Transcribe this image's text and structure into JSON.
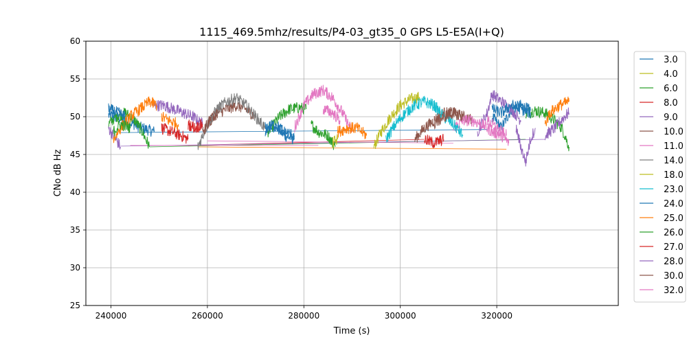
{
  "chart_data": {
    "type": "line",
    "title": "1115_469.5mhz/results/P4-03_gt35_0 GPS L5-E5A(I+Q)",
    "xlabel": "Time (s)",
    "ylabel": "CNo dB Hz",
    "xlim": [
      234800,
      345200
    ],
    "ylim": [
      25,
      60
    ],
    "x_ticks": [
      240000,
      260000,
      280000,
      300000,
      320000
    ],
    "x_tick_labels": [
      "240000",
      "260000",
      "280000",
      "300000",
      "320000"
    ],
    "y_ticks": [
      25,
      30,
      35,
      40,
      45,
      50,
      55,
      60
    ],
    "y_tick_labels": [
      "25",
      "30",
      "35",
      "40",
      "45",
      "50",
      "55",
      "60"
    ],
    "grid": true,
    "legend_position": "outside-right",
    "series": [
      {
        "name": "3.0",
        "color": "#1f77b4",
        "segments": [
          [
            [
              239500,
              50.2
            ],
            [
              243000,
              49.6
            ],
            [
              246000,
              48.6
            ],
            [
              249000,
              48.0
            ]
          ],
          [
            [
              272000,
              48.0
            ],
            [
              274000,
              48.8
            ],
            [
              276000,
              47.5
            ],
            [
              278000,
              47.0
            ]
          ],
          [
            [
              319000,
              50.0
            ],
            [
              321000,
              48.5
            ],
            [
              323000,
              51.0
            ],
            [
              325000,
              51.5
            ],
            [
              327000,
              50.8
            ]
          ]
        ]
      },
      {
        "name": "4.0",
        "color": "#bcbd22",
        "segments": [
          [
            [
              294500,
              46.0
            ],
            [
              296000,
              48.0
            ],
            [
              298000,
              50.0
            ],
            [
              300000,
              51.5
            ],
            [
              302000,
              52.3
            ],
            [
              304000,
              52.6
            ]
          ]
        ]
      },
      {
        "name": "6.0",
        "color": "#2ca02c",
        "segments": [
          [
            [
              239500,
              49.0
            ],
            [
              241000,
              50.0
            ],
            [
              243000,
              50.5
            ],
            [
              245000,
              49.5
            ],
            [
              246500,
              48.0
            ],
            [
              248000,
              46.0
            ]
          ],
          [
            [
              272500,
              48.0
            ],
            [
              275000,
              50.0
            ],
            [
              277000,
              51.0
            ],
            [
              279000,
              51.2
            ],
            [
              280500,
              51.0
            ]
          ],
          [
            [
              281500,
              49.0
            ],
            [
              283000,
              48.0
            ],
            [
              285000,
              47.5
            ],
            [
              286500,
              46.0
            ]
          ],
          [
            [
              326000,
              50.5
            ],
            [
              328000,
              50.8
            ],
            [
              330000,
              50.5
            ],
            [
              332000,
              49.5
            ],
            [
              333500,
              48.5
            ],
            [
              335000,
              46.0
            ]
          ]
        ]
      },
      {
        "name": "8.0",
        "color": "#d62728",
        "segments": [
          [
            [
              250500,
              48.5
            ],
            [
              252500,
              48.0
            ],
            [
              254500,
              47.5
            ],
            [
              256000,
              47.0
            ]
          ]
        ]
      },
      {
        "name": "9.0",
        "color": "#9467bd",
        "segments": [
          [
            [
              239500,
              48.5
            ],
            [
              241000,
              47.0
            ],
            [
              242000,
              46.0
            ]
          ],
          [
            [
              248500,
              51.5
            ],
            [
              251000,
              51.5
            ],
            [
              253000,
              51.0
            ],
            [
              255000,
              50.5
            ],
            [
              257000,
              50.0
            ],
            [
              259000,
              49.0
            ]
          ],
          [
            [
              316000,
              48.0
            ],
            [
              318000,
              50.5
            ],
            [
              319000,
              53.0
            ],
            [
              321000,
              52.0
            ],
            [
              323000,
              51.0
            ],
            [
              325000,
              49.5
            ]
          ],
          [
            [
              330000,
              47.5
            ],
            [
              332000,
              48.5
            ],
            [
              334000,
              50.0
            ],
            [
              335000,
              50.5
            ]
          ]
        ]
      },
      {
        "name": "10.0",
        "color": "#8c564b",
        "segments": [
          [
            [
              260000,
              49.0
            ],
            [
              262000,
              50.5
            ],
            [
              264000,
              51.0
            ],
            [
              266000,
              51.5
            ],
            [
              268000,
              51.0
            ],
            [
              270000,
              50.0
            ]
          ],
          [
            [
              303000,
              47.0
            ],
            [
              305000,
              48.5
            ],
            [
              307000,
              49.5
            ],
            [
              309000,
              50.5
            ],
            [
              311000,
              50.5
            ],
            [
              313000,
              50.0
            ],
            [
              315000,
              49.5
            ]
          ]
        ]
      },
      {
        "name": "11.0",
        "color": "#e377c2",
        "segments": [
          [
            [
              278000,
              48.5
            ],
            [
              280000,
              51.5
            ],
            [
              282000,
              53.0
            ],
            [
              284000,
              53.5
            ],
            [
              286000,
              52.5
            ],
            [
              288000,
              50.5
            ],
            [
              290000,
              48.0
            ]
          ],
          [
            [
              311000,
              48.5
            ],
            [
              313000,
              49.5
            ],
            [
              315000,
              49.5
            ],
            [
              317000,
              49.0
            ],
            [
              319000,
              48.0
            ],
            [
              321000,
              47.5
            ],
            [
              322500,
              46.5
            ]
          ]
        ]
      },
      {
        "name": "14.0",
        "color": "#7f7f7f",
        "segments": [
          [
            [
              258000,
              46.0
            ],
            [
              260000,
              49.0
            ],
            [
              262000,
              51.0
            ],
            [
              264000,
              52.0
            ],
            [
              266000,
              52.5
            ],
            [
              268000,
              51.5
            ],
            [
              270000,
              50.0
            ],
            [
              272000,
              48.5
            ]
          ]
        ]
      },
      {
        "name": "18.0",
        "color": "#bcbd22",
        "segments": [
          [
            [
              286000,
              46.5
            ],
            [
              287000,
              47.0
            ]
          ]
        ]
      },
      {
        "name": "23.0",
        "color": "#17becf",
        "segments": [
          [
            [
              297000,
              47.0
            ],
            [
              299000,
              49.0
            ],
            [
              301000,
              50.5
            ],
            [
              303000,
              51.5
            ],
            [
              305000,
              52.0
            ],
            [
              307000,
              51.5
            ],
            [
              309000,
              50.0
            ],
            [
              311000,
              49.0
            ],
            [
              313000,
              47.5
            ]
          ]
        ]
      },
      {
        "name": "24.0",
        "color": "#1f77b4",
        "segments": [
          [
            [
              239500,
              51.0
            ],
            [
              241500,
              50.5
            ],
            [
              243000,
              50.0
            ]
          ],
          [
            [
              272000,
              48.5
            ],
            [
              274000,
              49.0
            ],
            [
              276000,
              48.0
            ],
            [
              278000,
              47.5
            ]
          ],
          [
            [
              319000,
              51.0
            ],
            [
              321000,
              50.5
            ],
            [
              323000,
              51.5
            ],
            [
              325000,
              51.0
            ],
            [
              327000,
              50.5
            ]
          ]
        ]
      },
      {
        "name": "25.0",
        "color": "#ff7f0e",
        "segments": [
          [
            [
              240500,
              47.0
            ],
            [
              242000,
              48.5
            ],
            [
              244000,
              50.0
            ],
            [
              246000,
              51.0
            ],
            [
              248000,
              52.0
            ],
            [
              249500,
              51.5
            ]
          ],
          [
            [
              250500,
              50.0
            ],
            [
              252000,
              49.5
            ],
            [
              254000,
              49.0
            ]
          ],
          [
            [
              287000,
              48.0
            ],
            [
              289000,
              48.5
            ],
            [
              291000,
              48.5
            ],
            [
              293000,
              47.5
            ]
          ],
          [
            [
              330000,
              49.0
            ],
            [
              331000,
              50.5
            ],
            [
              333000,
              51.5
            ],
            [
              335000,
              52.0
            ]
          ]
        ]
      },
      {
        "name": "26.0",
        "color": "#2ca02c",
        "segments": [
          [
            [
              240500,
              48.0
            ],
            [
              242000,
              49.0
            ],
            [
              244000,
              48.5
            ]
          ]
        ]
      },
      {
        "name": "27.0",
        "color": "#d62728",
        "segments": [
          [
            [
              256000,
              49.0
            ],
            [
              257500,
              48.5
            ],
            [
              259000,
              49.0
            ]
          ],
          [
            [
              305000,
              47.0
            ],
            [
              307000,
              46.5
            ],
            [
              309000,
              47.0
            ]
          ]
        ]
      },
      {
        "name": "28.0",
        "color": "#9467bd",
        "segments": [
          [
            [
              324000,
              48.5
            ],
            [
              325000,
              46.0
            ],
            [
              326000,
              44.0
            ],
            [
              327000,
              47.0
            ],
            [
              328000,
              48.5
            ]
          ]
        ]
      },
      {
        "name": "30.0",
        "color": "#8c564b",
        "segments": [
          [
            [
              259000,
              48.0
            ],
            [
              260500,
              49.5
            ],
            [
              262000,
              50.5
            ]
          ],
          [
            [
              307000,
              49.0
            ],
            [
              309000,
              50.0
            ],
            [
              311000,
              50.5
            ],
            [
              313000,
              50.0
            ]
          ]
        ]
      },
      {
        "name": "32.0",
        "color": "#e377c2",
        "segments": [
          [
            [
              284000,
              51.0
            ],
            [
              286000,
              50.5
            ],
            [
              287500,
              49.5
            ]
          ],
          [
            [
              318000,
              49.5
            ],
            [
              320000,
              48.5
            ],
            [
              322000,
              47.5
            ]
          ]
        ]
      }
    ],
    "connector_lines": [
      {
        "series": "3.0",
        "color": "#1f77b4",
        "points": [
          [
            242000,
            47.9
          ],
          [
            318000,
            48.3
          ]
        ]
      },
      {
        "series": "6.0",
        "color": "#2ca02c",
        "points": [
          [
            248000,
            46.0
          ],
          [
            326000,
            47.0
          ]
        ]
      },
      {
        "series": "8.0",
        "color": "#d62728",
        "points": [
          [
            256000,
            46.2
          ],
          [
            305000,
            47.0
          ]
        ]
      },
      {
        "series": "9.0",
        "color": "#9467bd",
        "points": [
          [
            242000,
            46.1
          ],
          [
            330000,
            47.0
          ]
        ]
      },
      {
        "series": "11.0",
        "color": "#e377c2",
        "points": [
          [
            260000,
            46.8
          ],
          [
            311000,
            46.5
          ]
        ]
      },
      {
        "series": "25.0",
        "color": "#ff7f0e",
        "points": [
          [
            258000,
            46.0
          ],
          [
            322000,
            45.7
          ]
        ]
      },
      {
        "series": "32.0",
        "color": "#e377c2",
        "points": [
          [
            244000,
            46.2
          ],
          [
            283000,
            46.2
          ]
        ]
      }
    ]
  }
}
